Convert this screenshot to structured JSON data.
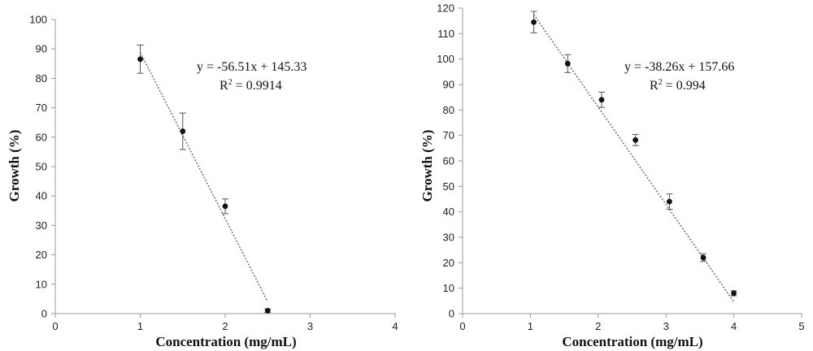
{
  "chart_data": [
    {
      "type": "scatter",
      "xlabel": "Concentration (mg/mL)",
      "ylabel": "Growth (%)",
      "xlim": [
        0,
        4
      ],
      "ylim": [
        0,
        100
      ],
      "xticks": [
        "0",
        "1",
        "2",
        "3",
        "4"
      ],
      "yticks": [
        "0",
        "10",
        "20",
        "30",
        "40",
        "50",
        "60",
        "70",
        "80",
        "90",
        "100"
      ],
      "points": [
        {
          "x": 1,
          "y": 86.5,
          "err": 4.8
        },
        {
          "x": 1.5,
          "y": 62,
          "err": 6.2
        },
        {
          "x": 2,
          "y": 36.5,
          "err": 2.5
        },
        {
          "x": 2.5,
          "y": 1,
          "err": 0.6
        }
      ],
      "trendline": {
        "slope": -56.51,
        "intercept": 145.33,
        "x_range": [
          1,
          2.5
        ],
        "style": "dotted"
      },
      "equation": "y = -56.51x + 145.33",
      "r2_prefix": "R",
      "r2_exponent": "2",
      "r2_value": " = 0.9914",
      "grid": false,
      "colors": {
        "points": "#111111",
        "errorbars": "#555555",
        "trendline": "#4a6f86",
        "axis": "#9a9a9a"
      }
    },
    {
      "type": "scatter",
      "xlabel": "Concentration (mg/mL)",
      "ylabel": "Growth (%)",
      "xlim": [
        0,
        5
      ],
      "ylim": [
        0,
        120
      ],
      "xticks": [
        "0",
        "1",
        "2",
        "3",
        "4",
        "5"
      ],
      "yticks": [
        "0",
        "10",
        "20",
        "30",
        "40",
        "50",
        "60",
        "70",
        "80",
        "90",
        "100",
        "110",
        "120"
      ],
      "points": [
        {
          "x": 1.05,
          "y": 114.5,
          "err": 4.2
        },
        {
          "x": 1.55,
          "y": 98.2,
          "err": 3.5
        },
        {
          "x": 2.05,
          "y": 84,
          "err": 3
        },
        {
          "x": 2.55,
          "y": 68.2,
          "err": 2.2
        },
        {
          "x": 3.05,
          "y": 44,
          "err": 3
        },
        {
          "x": 3.55,
          "y": 22,
          "err": 1.5
        },
        {
          "x": 4,
          "y": 8,
          "err": 1
        }
      ],
      "trendline": {
        "slope": -38.26,
        "intercept": 157.66,
        "x_range": [
          1.05,
          4
        ],
        "style": "dotted"
      },
      "equation": "y = -38.26x + 157.66",
      "r2_prefix": "R",
      "r2_exponent": "2",
      "r2_value": " = 0.994",
      "grid": false,
      "colors": {
        "points": "#111111",
        "errorbars": "#555555",
        "trendline": "#4a6f86",
        "axis": "#9a9a9a"
      }
    }
  ]
}
